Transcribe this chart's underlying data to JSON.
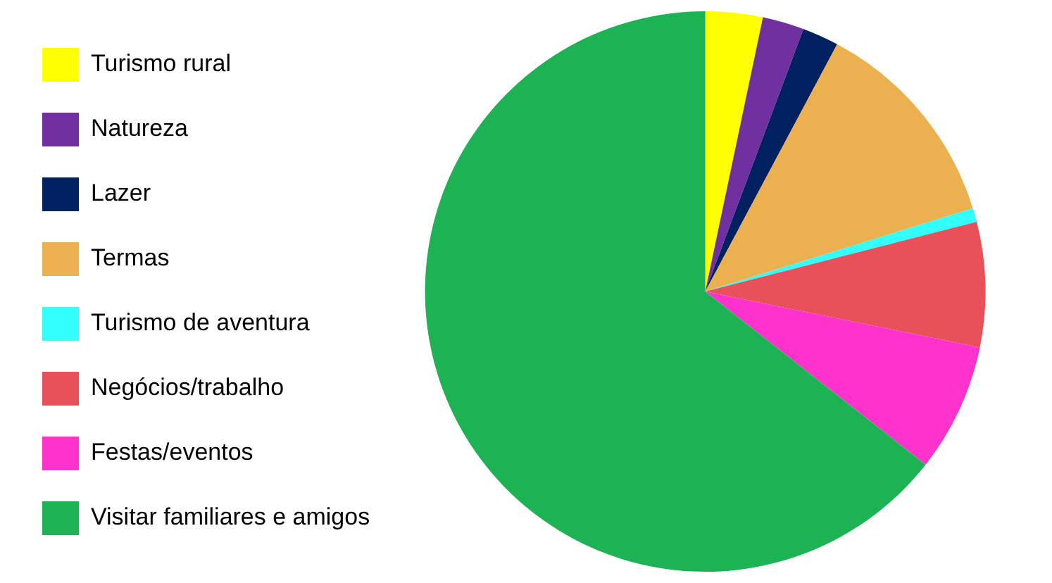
{
  "chart_data": {
    "type": "pie",
    "categories": [
      "Turismo rural",
      "Natureza",
      "Lazer",
      "Termas",
      "Turismo de aventura",
      "Negócios/trabalho",
      "Festas/eventos",
      "Visitar familiares e amigos"
    ],
    "values": [
      3.3,
      2.4,
      2.1,
      12.4,
      0.8,
      7.2,
      7.4,
      64.4
    ],
    "colors": [
      "#ffff00",
      "#7030a0",
      "#002060",
      "#ebb050",
      "#33ffff",
      "#e8505a",
      "#ff33cc",
      "#1db354"
    ],
    "legend": "left"
  }
}
